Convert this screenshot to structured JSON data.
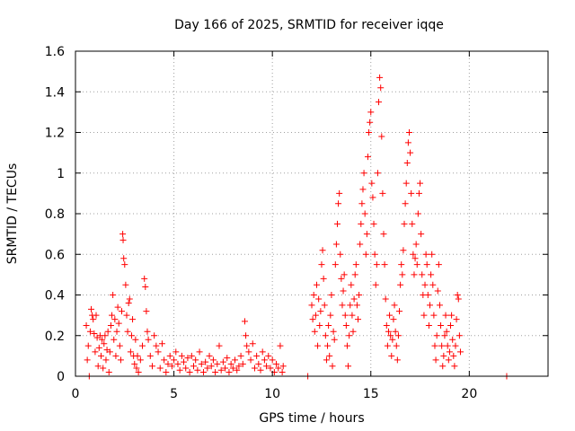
{
  "chart_data": {
    "type": "scatter",
    "title": "Day 166 of 2025, SRMTID for receiver iqqe",
    "xlabel": "GPS time / hours",
    "ylabel": "SRMTID / TECUs",
    "xlim": [
      0,
      24
    ],
    "ylim": [
      0,
      1.6
    ],
    "xticks": [
      "0",
      "5",
      "10",
      "15",
      "20"
    ],
    "yticks": [
      "0",
      "0.2",
      "0.4",
      "0.6",
      "0.8",
      "1",
      "1.2",
      "1.4",
      "1.6"
    ],
    "grid": true,
    "marker": "+",
    "color": "#ff0000",
    "series": [
      {
        "name": "SRMTID",
        "points": [
          [
            0.55,
            0.25
          ],
          [
            0.6,
            0.08
          ],
          [
            0.65,
            0.15
          ],
          [
            0.7,
            0.0
          ],
          [
            0.75,
            0.22
          ],
          [
            0.8,
            0.33
          ],
          [
            0.85,
            0.3
          ],
          [
            0.9,
            0.28
          ],
          [
            0.95,
            0.21
          ],
          [
            1.0,
            0.12
          ],
          [
            1.05,
            0.3
          ],
          [
            1.1,
            0.19
          ],
          [
            1.15,
            0.05
          ],
          [
            1.2,
            0.14
          ],
          [
            1.25,
            0.2
          ],
          [
            1.3,
            0.1
          ],
          [
            1.35,
            0.18
          ],
          [
            1.4,
            0.04
          ],
          [
            1.45,
            0.16
          ],
          [
            1.5,
            0.2
          ],
          [
            1.55,
            0.08
          ],
          [
            1.6,
            0.13
          ],
          [
            1.65,
            0.22
          ],
          [
            1.7,
            0.02
          ],
          [
            1.75,
            0.12
          ],
          [
            1.8,
            0.25
          ],
          [
            1.85,
            0.3
          ],
          [
            1.9,
            0.4
          ],
          [
            1.95,
            0.18
          ],
          [
            2.0,
            0.28
          ],
          [
            2.05,
            0.1
          ],
          [
            2.1,
            0.22
          ],
          [
            2.15,
            0.34
          ],
          [
            2.2,
            0.26
          ],
          [
            2.25,
            0.15
          ],
          [
            2.3,
            0.08
          ],
          [
            2.35,
            0.32
          ],
          [
            2.4,
            0.7
          ],
          [
            2.42,
            0.67
          ],
          [
            2.45,
            0.58
          ],
          [
            2.5,
            0.55
          ],
          [
            2.55,
            0.45
          ],
          [
            2.6,
            0.3
          ],
          [
            2.65,
            0.22
          ],
          [
            2.7,
            0.36
          ],
          [
            2.75,
            0.38
          ],
          [
            2.8,
            0.12
          ],
          [
            2.85,
            0.2
          ],
          [
            2.9,
            0.28
          ],
          [
            2.95,
            0.1
          ],
          [
            3.0,
            0.06
          ],
          [
            3.05,
            0.18
          ],
          [
            3.1,
            0.04
          ],
          [
            3.15,
            0.1
          ],
          [
            3.2,
            0.02
          ],
          [
            3.3,
            0.08
          ],
          [
            3.4,
            0.15
          ],
          [
            3.5,
            0.48
          ],
          [
            3.55,
            0.44
          ],
          [
            3.6,
            0.32
          ],
          [
            3.65,
            0.22
          ],
          [
            3.7,
            0.18
          ],
          [
            3.8,
            0.1
          ],
          [
            3.9,
            0.05
          ],
          [
            4.0,
            0.2
          ],
          [
            4.1,
            0.15
          ],
          [
            4.2,
            0.12
          ],
          [
            4.3,
            0.04
          ],
          [
            4.4,
            0.16
          ],
          [
            4.5,
            0.08
          ],
          [
            4.6,
            0.02
          ],
          [
            4.7,
            0.06
          ],
          [
            4.8,
            0.1
          ],
          [
            4.9,
            0.05
          ],
          [
            5.0,
            0.08
          ],
          [
            5.1,
            0.12
          ],
          [
            5.2,
            0.06
          ],
          [
            5.3,
            0.03
          ],
          [
            5.4,
            0.1
          ],
          [
            5.5,
            0.07
          ],
          [
            5.6,
            0.04
          ],
          [
            5.7,
            0.09
          ],
          [
            5.8,
            0.02
          ],
          [
            5.9,
            0.1
          ],
          [
            6.0,
            0.05
          ],
          [
            6.1,
            0.08
          ],
          [
            6.2,
            0.03
          ],
          [
            6.3,
            0.12
          ],
          [
            6.4,
            0.06
          ],
          [
            6.5,
            0.02
          ],
          [
            6.6,
            0.07
          ],
          [
            6.7,
            0.04
          ],
          [
            6.8,
            0.1
          ],
          [
            6.9,
            0.05
          ],
          [
            7.0,
            0.08
          ],
          [
            7.1,
            0.02
          ],
          [
            7.2,
            0.06
          ],
          [
            7.3,
            0.15
          ],
          [
            7.4,
            0.03
          ],
          [
            7.5,
            0.07
          ],
          [
            7.6,
            0.04
          ],
          [
            7.7,
            0.09
          ],
          [
            7.8,
            0.02
          ],
          [
            7.9,
            0.06
          ],
          [
            8.0,
            0.04
          ],
          [
            8.1,
            0.08
          ],
          [
            8.2,
            0.03
          ],
          [
            8.3,
            0.05
          ],
          [
            8.4,
            0.1
          ],
          [
            8.5,
            0.06
          ],
          [
            8.6,
            0.27
          ],
          [
            8.65,
            0.2
          ],
          [
            8.7,
            0.15
          ],
          [
            8.8,
            0.12
          ],
          [
            8.9,
            0.08
          ],
          [
            9.0,
            0.16
          ],
          [
            9.1,
            0.04
          ],
          [
            9.2,
            0.1
          ],
          [
            9.3,
            0.06
          ],
          [
            9.4,
            0.03
          ],
          [
            9.5,
            0.12
          ],
          [
            9.6,
            0.08
          ],
          [
            9.7,
            0.05
          ],
          [
            9.8,
            0.1
          ],
          [
            9.9,
            0.04
          ],
          [
            10.0,
            0.08
          ],
          [
            10.1,
            0.02
          ],
          [
            10.2,
            0.06
          ],
          [
            10.3,
            0.04
          ],
          [
            10.4,
            0.15
          ],
          [
            10.5,
            0.02
          ],
          [
            10.55,
            0.05
          ],
          [
            11.8,
            0.0
          ],
          [
            12.0,
            0.35
          ],
          [
            12.05,
            0.28
          ],
          [
            12.1,
            0.4
          ],
          [
            12.15,
            0.22
          ],
          [
            12.2,
            0.3
          ],
          [
            12.25,
            0.45
          ],
          [
            12.3,
            0.15
          ],
          [
            12.35,
            0.38
          ],
          [
            12.4,
            0.25
          ],
          [
            12.45,
            0.32
          ],
          [
            12.5,
            0.55
          ],
          [
            12.55,
            0.62
          ],
          [
            12.6,
            0.48
          ],
          [
            12.65,
            0.35
          ],
          [
            12.7,
            0.2
          ],
          [
            12.75,
            0.08
          ],
          [
            12.8,
            0.15
          ],
          [
            12.85,
            0.25
          ],
          [
            12.9,
            0.1
          ],
          [
            12.95,
            0.3
          ],
          [
            13.0,
            0.4
          ],
          [
            13.05,
            0.05
          ],
          [
            13.1,
            0.22
          ],
          [
            13.15,
            0.18
          ],
          [
            13.2,
            0.55
          ],
          [
            13.25,
            0.65
          ],
          [
            13.3,
            0.75
          ],
          [
            13.35,
            0.85
          ],
          [
            13.4,
            0.9
          ],
          [
            13.45,
            0.6
          ],
          [
            13.5,
            0.48
          ],
          [
            13.55,
            0.35
          ],
          [
            13.6,
            0.42
          ],
          [
            13.65,
            0.5
          ],
          [
            13.7,
            0.3
          ],
          [
            13.75,
            0.25
          ],
          [
            13.8,
            0.15
          ],
          [
            13.85,
            0.05
          ],
          [
            13.9,
            0.2
          ],
          [
            13.95,
            0.35
          ],
          [
            14.0,
            0.45
          ],
          [
            14.05,
            0.3
          ],
          [
            14.1,
            0.22
          ],
          [
            14.15,
            0.38
          ],
          [
            14.2,
            0.5
          ],
          [
            14.25,
            0.55
          ],
          [
            14.3,
            0.35
          ],
          [
            14.35,
            0.28
          ],
          [
            14.4,
            0.4
          ],
          [
            14.45,
            0.65
          ],
          [
            14.5,
            0.75
          ],
          [
            14.55,
            0.85
          ],
          [
            14.6,
            0.92
          ],
          [
            14.65,
            1.0
          ],
          [
            14.7,
            0.8
          ],
          [
            14.75,
            0.6
          ],
          [
            14.8,
            0.7
          ],
          [
            14.85,
            1.08
          ],
          [
            14.9,
            1.2
          ],
          [
            14.95,
            1.25
          ],
          [
            15.0,
            1.3
          ],
          [
            15.05,
            0.95
          ],
          [
            15.1,
            0.88
          ],
          [
            15.15,
            0.75
          ],
          [
            15.2,
            0.6
          ],
          [
            15.25,
            0.45
          ],
          [
            15.3,
            0.55
          ],
          [
            15.35,
            1.0
          ],
          [
            15.4,
            1.35
          ],
          [
            15.45,
            1.47
          ],
          [
            15.5,
            1.42
          ],
          [
            15.55,
            1.18
          ],
          [
            15.6,
            0.9
          ],
          [
            15.65,
            0.7
          ],
          [
            15.7,
            0.55
          ],
          [
            15.75,
            0.38
          ],
          [
            15.8,
            0.25
          ],
          [
            15.85,
            0.15
          ],
          [
            15.9,
            0.22
          ],
          [
            15.95,
            0.3
          ],
          [
            16.0,
            0.2
          ],
          [
            16.05,
            0.1
          ],
          [
            16.1,
            0.18
          ],
          [
            16.15,
            0.28
          ],
          [
            16.2,
            0.35
          ],
          [
            16.25,
            0.22
          ],
          [
            16.3,
            0.15
          ],
          [
            16.35,
            0.08
          ],
          [
            16.4,
            0.2
          ],
          [
            16.45,
            0.32
          ],
          [
            16.5,
            0.45
          ],
          [
            16.55,
            0.55
          ],
          [
            16.6,
            0.5
          ],
          [
            16.65,
            0.62
          ],
          [
            16.7,
            0.75
          ],
          [
            16.75,
            0.85
          ],
          [
            16.8,
            0.95
          ],
          [
            16.85,
            1.05
          ],
          [
            16.9,
            1.15
          ],
          [
            16.95,
            1.2
          ],
          [
            17.0,
            1.1
          ],
          [
            17.05,
            0.9
          ],
          [
            17.1,
            0.75
          ],
          [
            17.15,
            0.6
          ],
          [
            17.2,
            0.5
          ],
          [
            17.25,
            0.58
          ],
          [
            17.3,
            0.65
          ],
          [
            17.35,
            0.55
          ],
          [
            17.4,
            0.8
          ],
          [
            17.45,
            0.9
          ],
          [
            17.5,
            0.95
          ],
          [
            17.55,
            0.7
          ],
          [
            17.6,
            0.5
          ],
          [
            17.65,
            0.4
          ],
          [
            17.7,
            0.3
          ],
          [
            17.75,
            0.45
          ],
          [
            17.8,
            0.6
          ],
          [
            17.85,
            0.55
          ],
          [
            17.9,
            0.4
          ],
          [
            17.95,
            0.25
          ],
          [
            18.0,
            0.35
          ],
          [
            18.05,
            0.5
          ],
          [
            18.1,
            0.6
          ],
          [
            18.15,
            0.45
          ],
          [
            18.2,
            0.3
          ],
          [
            18.25,
            0.15
          ],
          [
            18.3,
            0.08
          ],
          [
            18.35,
            0.2
          ],
          [
            18.4,
            0.42
          ],
          [
            18.45,
            0.55
          ],
          [
            18.5,
            0.35
          ],
          [
            18.55,
            0.25
          ],
          [
            18.6,
            0.15
          ],
          [
            18.65,
            0.05
          ],
          [
            18.7,
            0.1
          ],
          [
            18.75,
            0.2
          ],
          [
            18.8,
            0.3
          ],
          [
            18.85,
            0.22
          ],
          [
            18.9,
            0.15
          ],
          [
            18.95,
            0.08
          ],
          [
            19.0,
            0.12
          ],
          [
            19.05,
            0.25
          ],
          [
            19.1,
            0.3
          ],
          [
            19.15,
            0.18
          ],
          [
            19.2,
            0.1
          ],
          [
            19.25,
            0.05
          ],
          [
            19.3,
            0.15
          ],
          [
            19.35,
            0.28
          ],
          [
            19.4,
            0.4
          ],
          [
            19.45,
            0.38
          ],
          [
            19.5,
            0.2
          ],
          [
            19.55,
            0.12
          ],
          [
            21.9,
            0.0
          ]
        ]
      }
    ]
  }
}
